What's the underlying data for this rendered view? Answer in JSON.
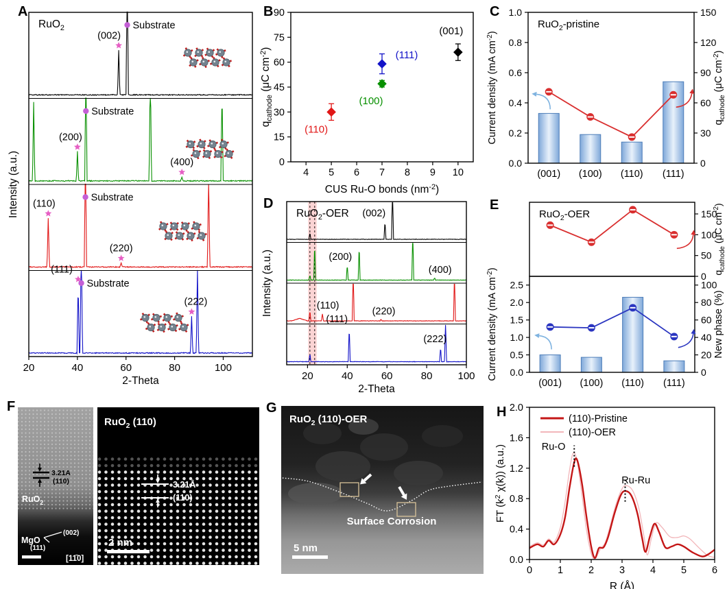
{
  "letters": {
    "A": "A",
    "B": "B",
    "C": "C",
    "D": "D",
    "E": "E",
    "F": "F",
    "G": "G",
    "H": "H"
  },
  "chart_data": [
    {
      "panel": "A",
      "type": "line",
      "subtype": "xrd_stack",
      "title": "RuO_2_",
      "xlabel": "2-Theta",
      "ylabel": "Intensity (a.u.)",
      "xlim": [
        20,
        112
      ],
      "xticks": [
        20,
        40,
        60,
        80,
        100
      ],
      "star_color": "#e65fc4",
      "substrate_dot_color": "#c45fd6",
      "traces": [
        {
          "name": "RuO2 (001) film",
          "color": "#000000",
          "peaks": [
            {
              "x": 57,
              "h": 0.55,
              "label": "(002)",
              "star": true,
              "lx": -14
            },
            {
              "x": 60.5,
              "h": 1.5,
              "label": "Substrate",
              "substrate": true
            }
          ]
        },
        {
          "name": "RuO2 (100) film",
          "color": "#089000",
          "peaks": [
            {
              "x": 22,
              "h": 0.97
            },
            {
              "x": 40,
              "h": 0.36,
              "label": "(200)",
              "star": true,
              "lx": -10
            },
            {
              "x": 43.5,
              "h": 1.5,
              "label": "Substrate",
              "substrate": true
            },
            {
              "x": 70,
              "h": 1.5
            },
            {
              "x": 83,
              "h": 0.05,
              "label": "(400)",
              "star": true
            },
            {
              "x": 99.5,
              "h": 1.1
            }
          ]
        },
        {
          "name": "RuO2 (110) film",
          "color": "#e11616",
          "peaks": [
            {
              "x": 28,
              "h": 0.6,
              "label": "(110)",
              "star": true,
              "lx": -6
            },
            {
              "x": 43.3,
              "h": 1.5,
              "label": "Substrate",
              "substrate": true
            },
            {
              "x": 58,
              "h": 0.05,
              "label": "(220)",
              "star": true
            },
            {
              "x": 94,
              "h": 1.2
            }
          ]
        },
        {
          "name": "RuO2 (111) film",
          "color": "#1212c8",
          "peaks": [
            {
              "x": 40.3,
              "h": 0.85,
              "label": "(111)",
              "star": true,
              "lx": -24
            },
            {
              "x": 41.6,
              "h": 1.5,
              "label": "Substrate",
              "substrate": true
            },
            {
              "x": 87,
              "h": 0.45,
              "label": "(222)",
              "star": true,
              "lx": 6
            },
            {
              "x": 89.4,
              "h": 1.05
            }
          ]
        }
      ]
    },
    {
      "panel": "B",
      "type": "scatter",
      "xlabel": "CUS Ru-O bonds (nm^-2^)",
      "ylabel": "q_cathode_ (μC cm^-2^)",
      "xlim": [
        3.4,
        10.6
      ],
      "ylim": [
        0,
        90
      ],
      "xticks": [
        4,
        5,
        6,
        7,
        8,
        9,
        10
      ],
      "yticks": [
        0,
        15,
        30,
        45,
        60,
        75,
        90
      ],
      "points": [
        {
          "x": 5,
          "y": 30,
          "err": 5,
          "color": "#e11616",
          "label": "(110)",
          "lpos": [
            -22,
            30
          ]
        },
        {
          "x": 7,
          "y": 47,
          "err": 2,
          "color": "#089000",
          "label": "(100)",
          "lpos": [
            -16,
            30
          ]
        },
        {
          "x": 7,
          "y": 59,
          "err": 6,
          "color": "#1212c8",
          "label": "(111)",
          "lpos": [
            36,
            -8
          ]
        },
        {
          "x": 10,
          "y": 66,
          "err": 5,
          "color": "#000000",
          "label": "(001)",
          "lpos": [
            -10,
            -26
          ]
        }
      ]
    },
    {
      "panel": "C",
      "type": "bar_line",
      "title": "RuO_2_-pristine",
      "categories": [
        "(001)",
        "(100)",
        "(110)",
        "(111)"
      ],
      "left_ylabel": "Current density (mA cm^-2^)",
      "left_ylim": [
        0,
        1.0
      ],
      "left_yticks": [
        0.0,
        0.2,
        0.4,
        0.6,
        0.8,
        1.0
      ],
      "right_ylabel": "q_cathode_ (μC cm^-2^)",
      "right_ylim": [
        0,
        150
      ],
      "right_yticks": [
        0,
        30,
        60,
        90,
        120,
        150
      ],
      "bars": [
        0.33,
        0.19,
        0.14,
        0.54
      ],
      "line": [
        71,
        46,
        26,
        68
      ],
      "line_color": "#d92f2f",
      "bar_stroke": "#4d7db8",
      "bar_fill_edge": "#7fa8d9",
      "bar_fill_mid": "#e8f1fb"
    },
    {
      "panel": "D",
      "type": "line",
      "subtype": "xrd_stack",
      "title": "RuO_2_-OER",
      "xlabel": "2-Theta",
      "ylabel": "Intensity (a.u.)",
      "xlim": [
        9.5,
        100
      ],
      "xticks": [
        20,
        40,
        60,
        80,
        100
      ],
      "band": [
        20.3,
        24.6
      ],
      "band_color": "rgba(244,120,120,0.32)",
      "dashes": [
        21.2,
        23.6
      ],
      "traces": [
        {
          "name": "RuO2 (001)-OER",
          "color": "#000000",
          "peaks": [
            {
              "x": 21.2,
              "h": 0.18
            },
            {
              "x": 59,
              "h": 0.5,
              "label": "(002)",
              "lx": -16
            },
            {
              "x": 62.8,
              "h": 1.5
            }
          ]
        },
        {
          "name": "RuO2 (100)-OER",
          "color": "#089000",
          "peaks": [
            {
              "x": 21.2,
              "h": 0.14
            },
            {
              "x": 23.6,
              "h": 1.0
            },
            {
              "x": 40,
              "h": 0.42,
              "label": "(200)",
              "lx": -10
            },
            {
              "x": 46,
              "h": 0.95
            },
            {
              "x": 73,
              "h": 1.5
            },
            {
              "x": 84,
              "h": 0.06,
              "label": "(400)",
              "lx": 8
            }
          ]
        },
        {
          "name": "RuO2 (110)-OER",
          "color": "#e11616",
          "peaks": [
            {
              "x": 16,
              "h": 0.07,
              "w": 4
            },
            {
              "x": 21.2,
              "h": 0.28
            },
            {
              "x": 27.5,
              "h": 0.2,
              "label": "(110)",
              "lx": 8
            },
            {
              "x": 43,
              "h": 1.5
            },
            {
              "x": 57,
              "h": 0.04,
              "label": "(220)",
              "lx": 4
            },
            {
              "x": 94,
              "h": 1.4
            }
          ]
        },
        {
          "name": "RuO2 (111)-OER",
          "color": "#1212c8",
          "peaks": [
            {
              "x": 21.2,
              "h": 0.22
            },
            {
              "x": 41,
              "h": 0.95,
              "label": "(111)",
              "lx": -18
            },
            {
              "x": 87,
              "h": 0.4,
              "label": "(222)",
              "lx": -8
            },
            {
              "x": 89.5,
              "h": 1.15
            }
          ]
        }
      ]
    },
    {
      "panel": "E",
      "type": "dual_stack",
      "title": "RuO_2_-OER",
      "categories": [
        "(001)",
        "(100)",
        "(110)",
        "(111)"
      ],
      "top": {
        "right_ylabel": "q_cathode_ (μC cm^-2^)",
        "right_ylim": [
          0,
          178
        ],
        "right_yticks": [
          0,
          50,
          100,
          150
        ],
        "line": [
          123,
          82,
          160,
          100
        ],
        "line_color": "#d92f2f"
      },
      "bottom": {
        "left_ylabel": "Current density (mA cm^-2^)",
        "left_ylim": [
          0,
          2.75
        ],
        "left_yticks": [
          0.0,
          0.5,
          1.0,
          1.5,
          2.0,
          2.5
        ],
        "right_ylabel": "New phase (%)",
        "right_ylim": [
          0,
          110
        ],
        "right_yticks": [
          0,
          20,
          40,
          60,
          80,
          100
        ],
        "bars": [
          0.5,
          0.43,
          2.15,
          0.33
        ],
        "line": [
          52,
          51,
          74,
          41
        ],
        "line_color": "#2a35c0",
        "bar_stroke": "#4d7db8",
        "bar_fill_edge": "#7fa8d9",
        "bar_fill_mid": "#e8f1fb"
      }
    },
    {
      "panel": "H",
      "type": "line",
      "subtype": "exafs",
      "xlabel": "R (Å)",
      "ylabel": "FT (k^2^ χ(k)) (a.u.)",
      "xlim": [
        0,
        6
      ],
      "ylim": [
        0,
        2.0
      ],
      "xticks": [
        0,
        1,
        2,
        3,
        4,
        5,
        6
      ],
      "yticks": [
        0.0,
        0.4,
        0.8,
        1.2,
        1.6,
        2.0
      ],
      "legend": [
        {
          "label": "(110)-Pristine",
          "color": "#c41616",
          "width": 2.4
        },
        {
          "label": "(110)-OER",
          "color": "#f2b6ba",
          "width": 1.3
        }
      ],
      "annotations": [
        {
          "text": "Ru-O",
          "x": 0.78,
          "y": 1.44
        },
        {
          "text": "Ru-Ru",
          "x": 3.45,
          "y": 1.0
        }
      ],
      "dotted_marks": [
        {
          "x": 1.45,
          "y1": 1.22,
          "y2": 1.5
        },
        {
          "x": 3.1,
          "y1": 0.76,
          "y2": 1.06
        }
      ],
      "series": [
        {
          "name": "(110)-Pristine",
          "color": "#c41616",
          "width": 2.4,
          "points": [
            [
              0,
              0.15
            ],
            [
              0.25,
              0.2
            ],
            [
              0.45,
              0.17
            ],
            [
              0.62,
              0.25
            ],
            [
              0.8,
              0.2
            ],
            [
              1.0,
              0.33
            ],
            [
              1.15,
              0.55
            ],
            [
              1.3,
              0.95
            ],
            [
              1.45,
              1.28
            ],
            [
              1.55,
              1.3
            ],
            [
              1.7,
              1.0
            ],
            [
              1.85,
              0.55
            ],
            [
              2.0,
              0.17
            ],
            [
              2.12,
              0.02
            ],
            [
              2.25,
              0.15
            ],
            [
              2.4,
              0.16
            ],
            [
              2.55,
              0.3
            ],
            [
              2.75,
              0.6
            ],
            [
              2.95,
              0.84
            ],
            [
              3.1,
              0.9
            ],
            [
              3.3,
              0.84
            ],
            [
              3.5,
              0.6
            ],
            [
              3.65,
              0.28
            ],
            [
              3.76,
              0.1
            ],
            [
              3.9,
              0.3
            ],
            [
              4.05,
              0.47
            ],
            [
              4.2,
              0.36
            ],
            [
              4.4,
              0.16
            ],
            [
              4.6,
              0.17
            ],
            [
              4.8,
              0.2
            ],
            [
              5.0,
              0.17
            ],
            [
              5.3,
              0.09
            ],
            [
              5.6,
              0.04
            ],
            [
              5.8,
              0.07
            ],
            [
              6.0,
              0.13
            ]
          ]
        },
        {
          "name": "(110)-OER",
          "color": "#f2b6ba",
          "width": 1.3,
          "points": [
            [
              0,
              0.17
            ],
            [
              0.25,
              0.22
            ],
            [
              0.45,
              0.19
            ],
            [
              0.62,
              0.27
            ],
            [
              0.8,
              0.23
            ],
            [
              1.0,
              0.42
            ],
            [
              1.15,
              0.75
            ],
            [
              1.3,
              1.18
            ],
            [
              1.42,
              1.4
            ],
            [
              1.55,
              1.28
            ],
            [
              1.7,
              0.85
            ],
            [
              1.85,
              0.38
            ],
            [
              2.0,
              0.08
            ],
            [
              2.12,
              0.01
            ],
            [
              2.3,
              0.14
            ],
            [
              2.45,
              0.22
            ],
            [
              2.6,
              0.42
            ],
            [
              2.8,
              0.72
            ],
            [
              3.0,
              0.93
            ],
            [
              3.15,
              0.97
            ],
            [
              3.35,
              0.9
            ],
            [
              3.55,
              0.66
            ],
            [
              3.72,
              0.28
            ],
            [
              3.82,
              0.06
            ],
            [
              3.95,
              0.28
            ],
            [
              4.1,
              0.48
            ],
            [
              4.3,
              0.42
            ],
            [
              4.55,
              0.3
            ],
            [
              4.8,
              0.29
            ],
            [
              5.0,
              0.31
            ],
            [
              5.2,
              0.27
            ],
            [
              5.5,
              0.15
            ],
            [
              5.75,
              0.06
            ],
            [
              5.95,
              0.03
            ],
            [
              6.0,
              0.04
            ]
          ]
        }
      ]
    }
  ],
  "tem": {
    "F": {
      "left": {
        "spacing": "3.21A",
        "plane": "(110)",
        "top_material": "RuO_2_",
        "bottom_material": "MgO",
        "wedge_labels": [
          "(002)",
          "(111)"
        ],
        "zone_axis": "[11̄0]"
      },
      "right": {
        "label": "RuO_2_ (110)",
        "spacing": "3.21Å",
        "plane": "(110)",
        "scalebar": "2 nm"
      }
    },
    "G": {
      "label": "RuO_2_ (110)-OER",
      "caption": "Surface Corrosion",
      "scalebar": "5 nm"
    }
  }
}
